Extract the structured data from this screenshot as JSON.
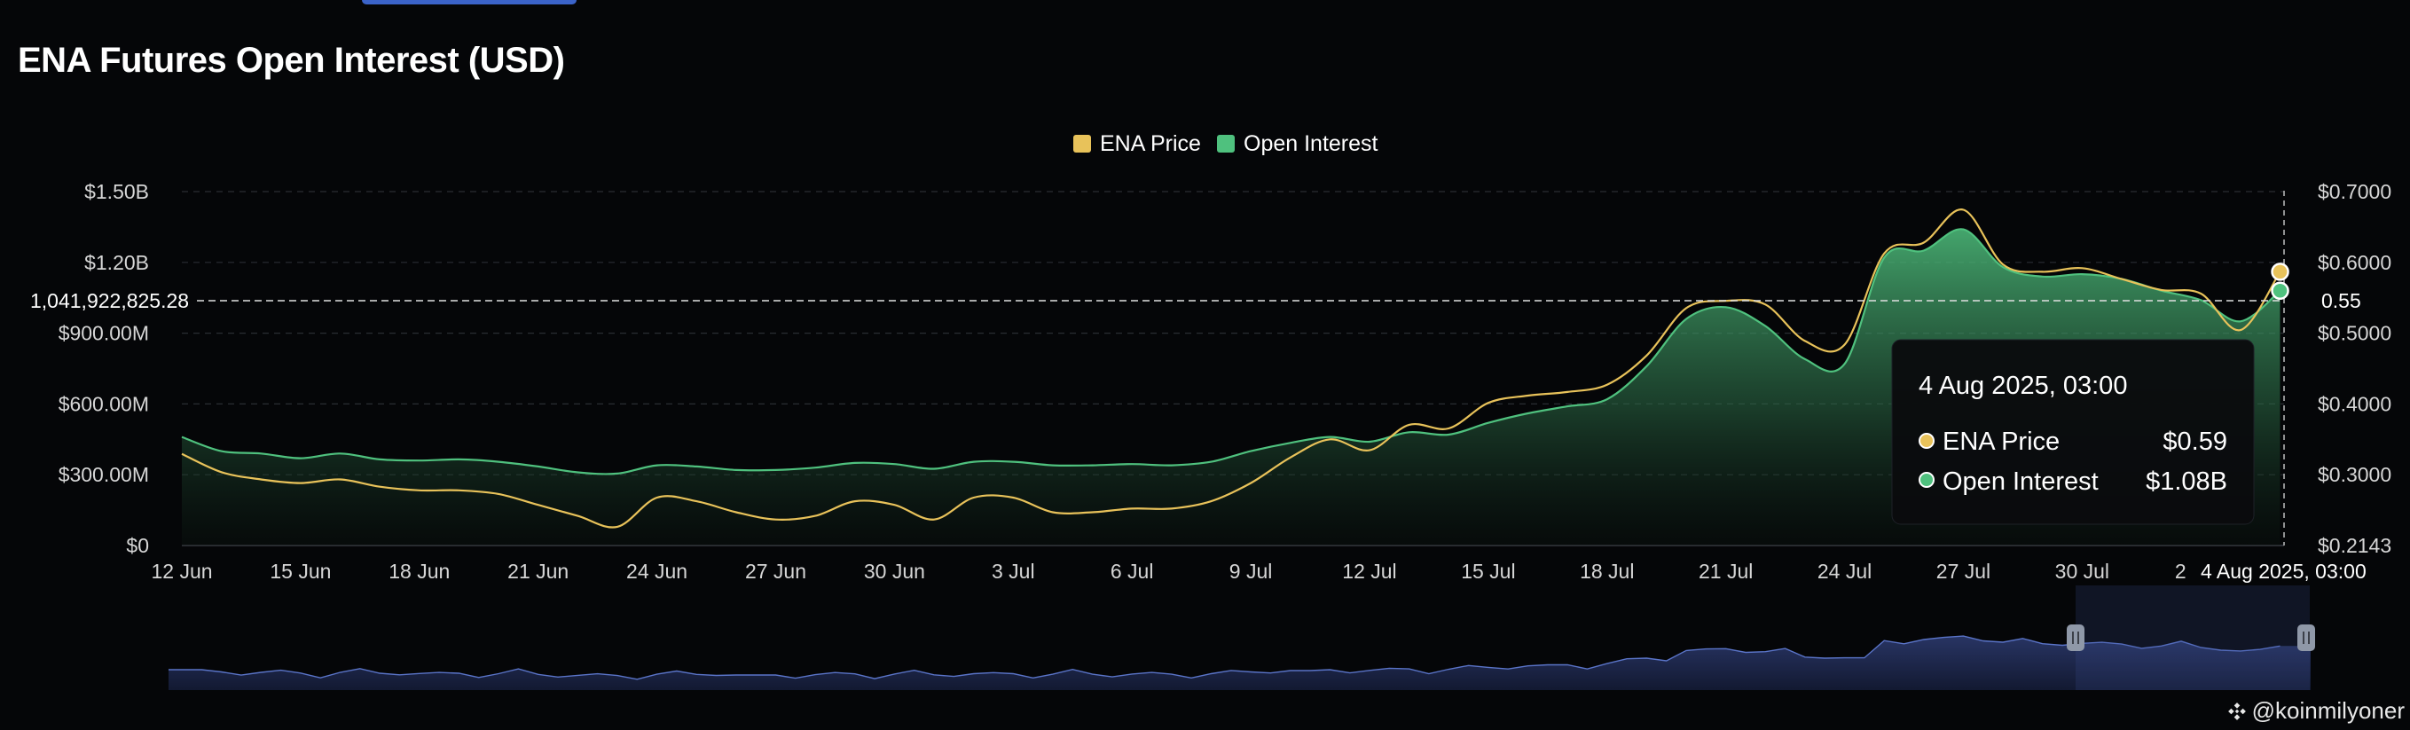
{
  "title": "ENA Futures Open Interest (USD)",
  "watermark": "@koinmilyoner",
  "tooltip": {
    "date": "4 Aug 2025, 03:00",
    "rows": [
      {
        "label": "ENA Price",
        "value": "$0.59"
      },
      {
        "label": "Open Interest",
        "value": "$1.08B"
      }
    ]
  },
  "crosshair": {
    "y_label_left": "1,041,922,825.28",
    "y_label_right": "0.55",
    "x_label": "4 Aug 2025, 03:00"
  },
  "colors": {
    "price": "#e8c25a",
    "oi": "#4fc17e",
    "navigator": "#5a74c8"
  },
  "chart_data": {
    "type": "area",
    "title": "ENA Futures Open Interest (USD)",
    "legend": {
      "placement": "top-center",
      "entries": [
        "ENA Price",
        "Open Interest"
      ]
    },
    "grid": true,
    "x_ticks": [
      "12 Jun",
      "15 Jun",
      "18 Jun",
      "21 Jun",
      "24 Jun",
      "27 Jun",
      "30 Jun",
      "3 Jul",
      "6 Jul",
      "9 Jul",
      "12 Jul",
      "15 Jul",
      "18 Jul",
      "21 Jul",
      "24 Jul",
      "27 Jul",
      "30 Jul",
      "2 Aug"
    ],
    "y_left_ticks": [
      "$0",
      "$300.00M",
      "$600.00M",
      "$900.00M",
      "$1.20B",
      "$1.50B"
    ],
    "y_left_range": [
      0,
      1500000000
    ],
    "y_right_ticks": [
      "$0.2143",
      "$0.3000",
      "$0.4000",
      "$0.5000",
      "$0.6000",
      "$0.7000"
    ],
    "y_right_range": [
      0.2143,
      0.7
    ],
    "x_range_days": [
      0,
      53.1
    ],
    "series": [
      {
        "name": "Open Interest",
        "axis": "left",
        "x_days": [
          0,
          1,
          2,
          3,
          4,
          5,
          6,
          7,
          8,
          9,
          10,
          11,
          12,
          13,
          14,
          15,
          16,
          17,
          18,
          19,
          20,
          21,
          22,
          23,
          24,
          25,
          26,
          27,
          28,
          29,
          30,
          31,
          32,
          33,
          34,
          35,
          36,
          37,
          38,
          39,
          40,
          41,
          42,
          43,
          44,
          45,
          46,
          47,
          48,
          49,
          50,
          51,
          52,
          53
        ],
        "values": [
          460000000,
          400000000,
          390000000,
          370000000,
          390000000,
          365000000,
          360000000,
          365000000,
          355000000,
          335000000,
          310000000,
          305000000,
          340000000,
          335000000,
          320000000,
          320000000,
          330000000,
          350000000,
          345000000,
          325000000,
          355000000,
          355000000,
          340000000,
          340000000,
          345000000,
          340000000,
          355000000,
          400000000,
          435000000,
          460000000,
          440000000,
          480000000,
          470000000,
          520000000,
          560000000,
          590000000,
          620000000,
          760000000,
          960000000,
          1010000000,
          930000000,
          790000000,
          770000000,
          1220000000,
          1250000000,
          1340000000,
          1180000000,
          1140000000,
          1150000000,
          1130000000,
          1080000000,
          1040000000,
          950000000,
          1080000000
        ]
      },
      {
        "name": "ENA Price",
        "axis": "right",
        "x_days": [
          0,
          1,
          2,
          3,
          4,
          5,
          6,
          7,
          8,
          9,
          10,
          11,
          12,
          13,
          14,
          15,
          16,
          17,
          18,
          19,
          20,
          21,
          22,
          23,
          24,
          25,
          26,
          27,
          28,
          29,
          30,
          31,
          32,
          33,
          34,
          35,
          36,
          37,
          38,
          39,
          40,
          41,
          42,
          43,
          44,
          45,
          46,
          47,
          48,
          49,
          50,
          51,
          52,
          53
        ],
        "values": [
          0.34,
          0.315,
          0.305,
          0.3,
          0.305,
          0.295,
          0.29,
          0.29,
          0.285,
          0.27,
          0.255,
          0.24,
          0.28,
          0.275,
          0.26,
          0.25,
          0.255,
          0.275,
          0.27,
          0.25,
          0.28,
          0.28,
          0.26,
          0.26,
          0.265,
          0.265,
          0.275,
          0.3,
          0.335,
          0.36,
          0.345,
          0.38,
          0.375,
          0.41,
          0.42,
          0.425,
          0.435,
          0.475,
          0.54,
          0.55,
          0.545,
          0.495,
          0.49,
          0.615,
          0.63,
          0.675,
          0.6,
          0.59,
          0.595,
          0.58,
          0.565,
          0.56,
          0.51,
          0.59
        ]
      }
    ]
  }
}
